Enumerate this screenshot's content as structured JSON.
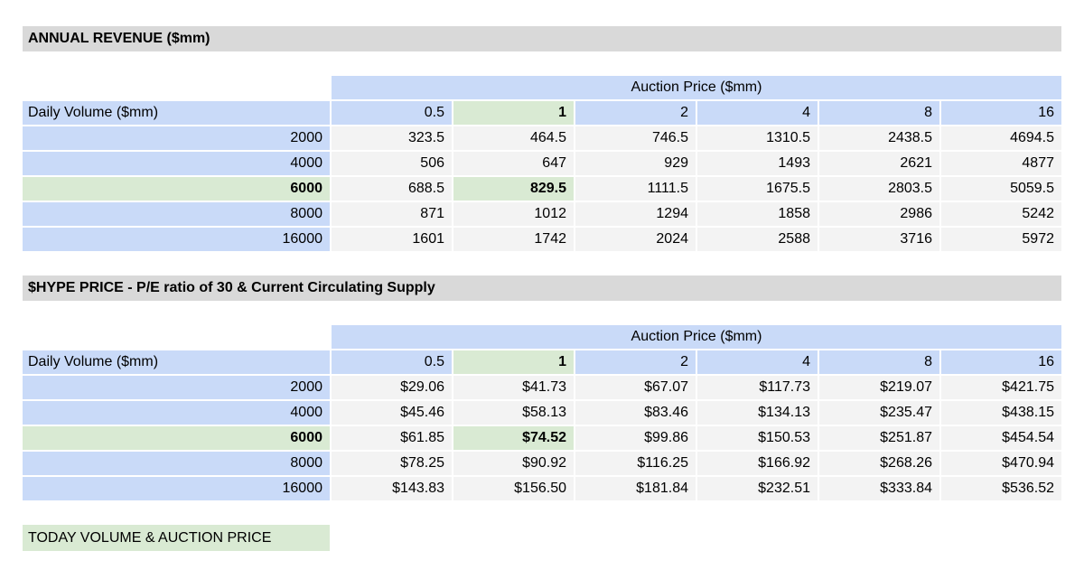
{
  "colors": {
    "title_bg": "#d9d9d9",
    "header_blue": "#c9daf8",
    "highlight_green": "#d9ead3",
    "data_cell_gray": "#f3f3f3",
    "text": "#000000",
    "page_bg": "#ffffff"
  },
  "tables": [
    {
      "title": "ANNUAL REVENUE ($mm)",
      "group_header": "Auction Price ($mm)",
      "row_header_label": "Daily Volume ($mm)",
      "columns": [
        "0.5",
        "1",
        "2",
        "4",
        "8",
        "16"
      ],
      "highlighted_column_index": 1,
      "highlighted_row_index": 2,
      "rows": [
        {
          "label": "2000",
          "values": [
            "323.5",
            "464.5",
            "746.5",
            "1310.5",
            "2438.5",
            "4694.5"
          ]
        },
        {
          "label": "4000",
          "values": [
            "506",
            "647",
            "929",
            "1493",
            "2621",
            "4877"
          ]
        },
        {
          "label": "6000",
          "values": [
            "688.5",
            "829.5",
            "1111.5",
            "1675.5",
            "2803.5",
            "5059.5"
          ]
        },
        {
          "label": "8000",
          "values": [
            "871",
            "1012",
            "1294",
            "1858",
            "2986",
            "5242"
          ]
        },
        {
          "label": "16000",
          "values": [
            "1601",
            "1742",
            "2024",
            "2588",
            "3716",
            "5972"
          ]
        }
      ]
    },
    {
      "title": "$HYPE PRICE - P/E ratio of 30 & Current Circulating Supply",
      "group_header": "Auction Price ($mm)",
      "row_header_label": "Daily Volume ($mm)",
      "columns": [
        "0.5",
        "1",
        "2",
        "4",
        "8",
        "16"
      ],
      "highlighted_column_index": 1,
      "highlighted_row_index": 2,
      "rows": [
        {
          "label": "2000",
          "values": [
            "$29.06",
            "$41.73",
            "$67.07",
            "$117.73",
            "$219.07",
            "$421.75"
          ]
        },
        {
          "label": "4000",
          "values": [
            "$45.46",
            "$58.13",
            "$83.46",
            "$134.13",
            "$235.47",
            "$438.15"
          ]
        },
        {
          "label": "6000",
          "values": [
            "$61.85",
            "$74.52",
            "$99.86",
            "$150.53",
            "$251.87",
            "$454.54"
          ]
        },
        {
          "label": "8000",
          "values": [
            "$78.25",
            "$90.92",
            "$116.25",
            "$166.92",
            "$268.26",
            "$470.94"
          ]
        },
        {
          "label": "16000",
          "values": [
            "$143.83",
            "$156.50",
            "$181.84",
            "$232.51",
            "$333.84",
            "$536.52"
          ]
        }
      ]
    }
  ],
  "footer": {
    "label": "TODAY VOLUME & AUCTION PRICE"
  }
}
